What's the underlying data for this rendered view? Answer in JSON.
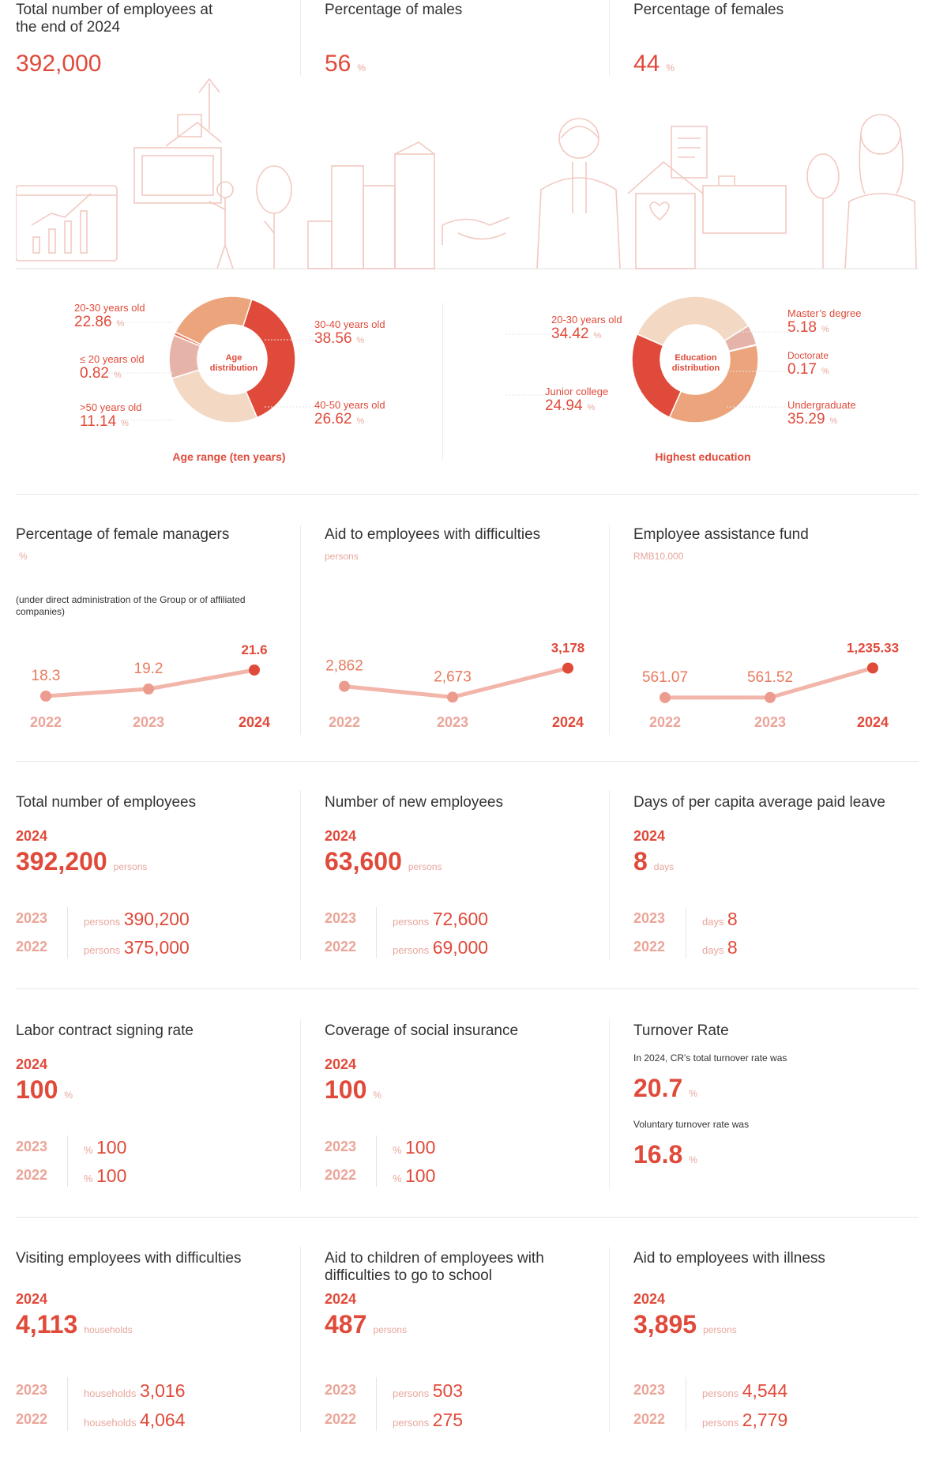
{
  "top": {
    "total": {
      "title": "Total number of employees at the end of 2024",
      "value": "392,000"
    },
    "males": {
      "title": "Percentage of males",
      "value": "56",
      "unit": "%"
    },
    "females": {
      "title": "Percentage of females",
      "value": "44",
      "unit": "%"
    }
  },
  "age": {
    "center": "Age distribution",
    "caption": "Age range (ten years)",
    "items": [
      {
        "label": "20-30 years old",
        "value": "22.86",
        "unit": "%"
      },
      {
        "label": "≤ 20 years old",
        "value": "0.82",
        "unit": "%"
      },
      {
        "label": ">50 years old",
        "value": "11.14",
        "unit": "%"
      },
      {
        "label": "30-40 years old",
        "value": "38.56",
        "unit": "%"
      },
      {
        "label": "40-50 years old",
        "value": "26.62",
        "unit": "%"
      }
    ]
  },
  "edu": {
    "center": "Education distribution",
    "caption": "Highest education",
    "items": [
      {
        "label": "20-30 years old",
        "value": "34.42",
        "unit": "%"
      },
      {
        "label": "Junior college",
        "value": "24.94",
        "unit": "%"
      },
      {
        "label": "Master’s degree",
        "value": "5.18",
        "unit": "%"
      },
      {
        "label": "Doctorate",
        "value": "0.17",
        "unit": "%"
      },
      {
        "label": "Undergraduate",
        "value": "35.29",
        "unit": "%"
      }
    ]
  },
  "chart_data": [
    {
      "type": "pie",
      "title": "Age distribution",
      "categories": [
        "30-40 years old",
        "40-50 years old",
        ">50 years old",
        "≤ 20 years old",
        "20-30 years old"
      ],
      "values": [
        38.56,
        26.62,
        11.14,
        0.82,
        22.86
      ],
      "colors": [
        "#e04a3a",
        "#f3d9c4",
        "#e6b3a8",
        "#e77a5e",
        "#eba47b"
      ]
    },
    {
      "type": "pie",
      "title": "Education distribution",
      "categories": [
        "Master’s degree",
        "Doctorate",
        "Undergraduate",
        "Junior college",
        "20-30 years old"
      ],
      "values": [
        5.18,
        0.17,
        35.29,
        24.94,
        34.42
      ],
      "colors": [
        "#e6b3a8",
        "#e04a3a",
        "#eba47b",
        "#e04a3a",
        "#f3d9c4"
      ]
    },
    {
      "type": "line",
      "title": "Percentage of female managers",
      "categories": [
        "2022",
        "2023",
        "2024"
      ],
      "values": [
        18.3,
        19.2,
        21.6
      ],
      "labels": [
        "18.3",
        "19.2",
        "21.6"
      ]
    },
    {
      "type": "line",
      "title": "Aid to employees with difficulties",
      "categories": [
        "2022",
        "2023",
        "2024"
      ],
      "values": [
        2862,
        2673,
        3178
      ],
      "labels": [
        "2,862",
        "2,673",
        "3,178"
      ]
    },
    {
      "type": "line",
      "title": "Employee assistance fund",
      "categories": [
        "2022",
        "2023",
        "2024"
      ],
      "values": [
        561.07,
        561.52,
        1235.33
      ],
      "labels": [
        "561.07",
        "561.52",
        "1,235.33"
      ]
    }
  ],
  "trends": [
    {
      "title": "Percentage of female managers",
      "unit": "%",
      "note": "(under direct administration of the Group or of affiliated companies)",
      "years": [
        "2022",
        "2023",
        "2024"
      ]
    },
    {
      "title": "Aid to employees with difficulties",
      "unit": "persons",
      "note": "",
      "years": [
        "2022",
        "2023",
        "2024"
      ]
    },
    {
      "title": "Employee assistance fund",
      "unit": "RMB10,000",
      "note": "",
      "years": [
        "2022",
        "2023",
        "2024"
      ]
    }
  ],
  "stats": [
    {
      "title": "Total number of employees",
      "year": "2024",
      "value": "392,200",
      "unit": "persons",
      "hist": [
        {
          "year": "2023",
          "unit": "persons",
          "value": "390,200"
        },
        {
          "year": "2022",
          "unit": "persons",
          "value": "375,000"
        }
      ]
    },
    {
      "title": "Number of new employees",
      "year": "2024",
      "value": "63,600",
      "unit": "persons",
      "hist": [
        {
          "year": "2023",
          "unit": "persons",
          "value": "72,600"
        },
        {
          "year": "2022",
          "unit": "persons",
          "value": "69,000"
        }
      ]
    },
    {
      "title": "Days of per capita average paid leave",
      "year": "2024",
      "value": "8",
      "unit": "days",
      "hist": [
        {
          "year": "2023",
          "unit": "days",
          "value": "8"
        },
        {
          "year": "2022",
          "unit": "days",
          "value": "8"
        }
      ]
    },
    {
      "title": "Labor contract signing rate",
      "year": "2024",
      "value": "100",
      "unit": "%",
      "hist": [
        {
          "year": "2023",
          "unit": "%",
          "value": "100"
        },
        {
          "year": "2022",
          "unit": "%",
          "value": "100"
        }
      ]
    },
    {
      "title": "Coverage of social insurance",
      "year": "2024",
      "value": "100",
      "unit": "%",
      "hist": [
        {
          "year": "2023",
          "unit": "%",
          "value": "100"
        },
        {
          "year": "2022",
          "unit": "%",
          "value": "100"
        }
      ]
    },
    {
      "title": "Visiting employees with difficulties",
      "year": "2024",
      "value": "4,113",
      "unit": "households",
      "hist": [
        {
          "year": "2023",
          "unit": "households",
          "value": "3,016"
        },
        {
          "year": "2022",
          "unit": "households",
          "value": "4,064"
        }
      ]
    },
    {
      "title": "Aid to children of employees with difficulties to go to school",
      "year": "2024",
      "value": "487",
      "unit": "persons",
      "hist": [
        {
          "year": "2023",
          "unit": "persons",
          "value": "503"
        },
        {
          "year": "2022",
          "unit": "persons",
          "value": "275"
        }
      ]
    },
    {
      "title": "Aid to employees with illness",
      "year": "2024",
      "value": "3,895",
      "unit": "persons",
      "hist": [
        {
          "year": "2023",
          "unit": "persons",
          "value": "4,544"
        },
        {
          "year": "2022",
          "unit": "persons",
          "value": "2,779"
        }
      ]
    }
  ],
  "turnover": {
    "title": "Turnover Rate",
    "text1": "In 2024, CR's total turnover rate was",
    "value1": "20.7",
    "text2": "Voluntary turnover rate was",
    "value2": "16.8",
    "unit": "%"
  }
}
